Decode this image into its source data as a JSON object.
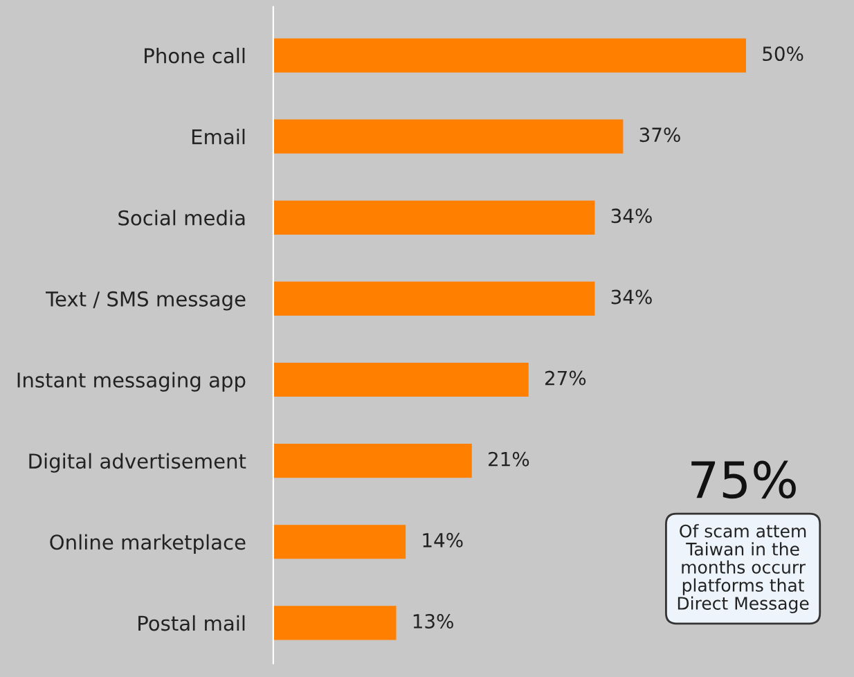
{
  "chart_data": {
    "type": "bar",
    "orientation": "horizontal",
    "categories": [
      "Phone call",
      "Email",
      "Social media",
      "Text / SMS message",
      "Instant messaging app",
      "Digital advertisement",
      "Online marketplace",
      "Postal mail"
    ],
    "values": [
      50,
      37,
      34,
      34,
      27,
      21,
      14,
      13
    ],
    "value_labels": [
      "50%",
      "37%",
      "34%",
      "34%",
      "27%",
      "21%",
      "14%",
      "13%"
    ],
    "color": "#ff8000",
    "annotations": [
      "75%",
      "Of scam attem\nTaiwan in the\nmonths occurr\nplatforms that\nDirect Message"
    ],
    "grid": false,
    "legend": false
  }
}
